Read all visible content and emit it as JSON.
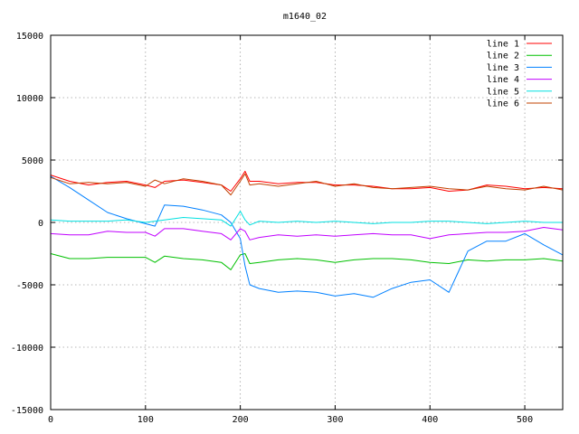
{
  "chart_data": {
    "type": "line",
    "title": "m1640_02",
    "xlabel": "",
    "ylabel": "",
    "xlim": [
      0,
      540
    ],
    "ylim": [
      -15000,
      15000
    ],
    "grid": true,
    "legend_position": "top-right",
    "x_ticks": [
      0,
      100,
      200,
      300,
      400,
      500
    ],
    "x_tick_labels": [
      "0",
      "100",
      "200",
      "300",
      "400",
      "500"
    ],
    "y_ticks": [
      -15000,
      -10000,
      -5000,
      0,
      5000,
      10000,
      15000
    ],
    "y_tick_labels": [
      "-15000",
      "-10000",
      "-5000",
      "0",
      "5000",
      "10000",
      "15000"
    ],
    "x": [
      0,
      20,
      40,
      60,
      80,
      100,
      110,
      120,
      140,
      160,
      180,
      190,
      200,
      205,
      210,
      220,
      240,
      260,
      280,
      300,
      320,
      340,
      360,
      380,
      400,
      420,
      440,
      460,
      480,
      500,
      520,
      540
    ],
    "series": [
      {
        "name": "line 1",
        "color": "#ff0000",
        "values": [
          3800,
          3300,
          3000,
          3200,
          3300,
          3000,
          2800,
          3300,
          3400,
          3200,
          3000,
          2500,
          3500,
          4100,
          3300,
          3300,
          3100,
          3200,
          3200,
          3000,
          3000,
          2900,
          2700,
          2700,
          2800,
          2500,
          2600,
          3000,
          2900,
          2700,
          2800,
          2700
        ]
      },
      {
        "name": "line 2",
        "color": "#00c000",
        "values": [
          -2500,
          -2900,
          -2900,
          -2800,
          -2800,
          -2800,
          -3200,
          -2700,
          -2900,
          -3000,
          -3200,
          -3800,
          -2600,
          -2500,
          -3300,
          -3200,
          -3000,
          -2900,
          -3000,
          -3200,
          -3000,
          -2900,
          -2900,
          -3000,
          -3200,
          -3300,
          -3000,
          -3100,
          -3000,
          -3000,
          -2900,
          -3100
        ]
      },
      {
        "name": "line 3",
        "color": "#0080ff",
        "values": [
          3700,
          2800,
          1800,
          800,
          300,
          -100,
          -300,
          1400,
          1300,
          1000,
          600,
          0,
          -1300,
          -3500,
          -5000,
          -5300,
          -5600,
          -5500,
          -5600,
          -5900,
          -5700,
          -6000,
          -5300,
          -4800,
          -4600,
          -5600,
          -2300,
          -1500,
          -1500,
          -900,
          -1800,
          -2600
        ]
      },
      {
        "name": "line 4",
        "color": "#c000ff",
        "values": [
          -900,
          -1000,
          -1000,
          -700,
          -800,
          -800,
          -1100,
          -500,
          -500,
          -700,
          -900,
          -1400,
          -500,
          -700,
          -1400,
          -1200,
          -1000,
          -1100,
          -1000,
          -1100,
          -1000,
          -900,
          -1000,
          -1000,
          -1300,
          -1000,
          -900,
          -800,
          -800,
          -700,
          -400,
          -600
        ]
      },
      {
        "name": "line 5",
        "color": "#00e0e0",
        "values": [
          200,
          100,
          100,
          100,
          200,
          0,
          100,
          200,
          400,
          300,
          200,
          -300,
          900,
          200,
          -200,
          100,
          0,
          100,
          0,
          100,
          0,
          -100,
          0,
          0,
          100,
          100,
          0,
          -100,
          0,
          100,
          0,
          0
        ]
      },
      {
        "name": "line 6",
        "color": "#c04000",
        "values": [
          3600,
          3100,
          3200,
          3100,
          3200,
          2900,
          3400,
          3100,
          3500,
          3300,
          3000,
          2200,
          3300,
          3900,
          3000,
          3100,
          2900,
          3100,
          3300,
          2900,
          3100,
          2800,
          2700,
          2800,
          2900,
          2700,
          2600,
          2900,
          2700,
          2600,
          2900,
          2600
        ]
      }
    ]
  }
}
